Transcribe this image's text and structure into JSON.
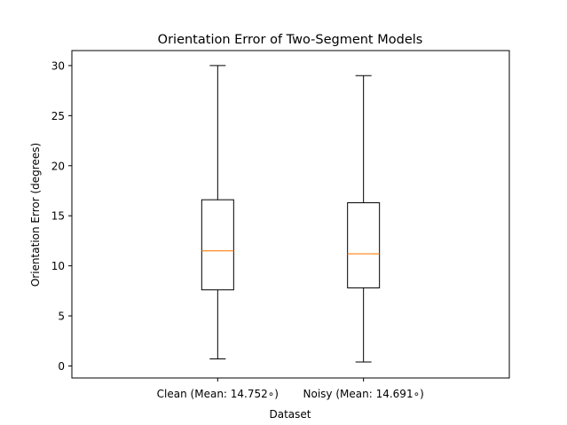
{
  "chart_data": {
    "type": "box",
    "title": "Orientation Error of Two-Segment Models",
    "xlabel": "Dataset",
    "ylabel": "Orientation Error (degrees)",
    "ylim": [
      -1.2,
      31.5
    ],
    "yticks": [
      0,
      5,
      10,
      15,
      20,
      25,
      30
    ],
    "grid": false,
    "categories": [
      "Clean (Mean: 14.752$^\\circ$)",
      "Noisy (Mean: 14.691$^\\circ$)"
    ],
    "category_labels": [
      "Clean (Mean: 14.752∘)",
      "Noisy (Mean: 14.691∘)"
    ],
    "boxes": [
      {
        "whisker_low": 0.7,
        "q1": 7.6,
        "median": 11.5,
        "q3": 16.6,
        "whisker_high": 30.0
      },
      {
        "whisker_low": 0.4,
        "q1": 7.8,
        "median": 11.2,
        "q3": 16.3,
        "whisker_high": 29.0
      }
    ],
    "colors": {
      "box": "#000000",
      "median": "#ff7f0e"
    }
  }
}
